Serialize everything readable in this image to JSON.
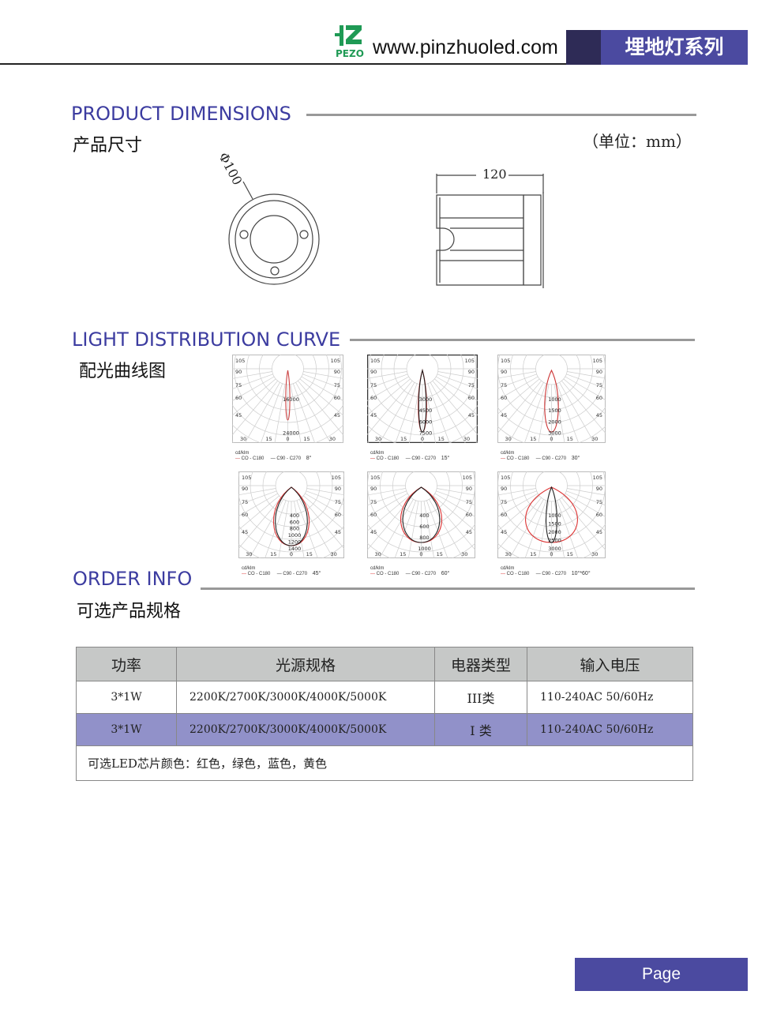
{
  "header": {
    "brand": "PEZO",
    "url": "www.pinzhuoled.com",
    "series": "埋地灯系列",
    "colors": {
      "brand_green": "#1f9a55",
      "accent": "#4b4aa0",
      "dark": "#2e2b56"
    }
  },
  "dimensions": {
    "title_en": "PRODUCT DIMENSIONS",
    "title_cn": "产品尺寸",
    "unit": "（单位：mm）",
    "diameter": "Φ100",
    "length": "120"
  },
  "distribution": {
    "title_en": "LIGHT DISTRIBUTION CURVE",
    "title_cn": "配光曲线图",
    "unit_label": "cd/klm",
    "series": [
      "CO - C180",
      "C90 - C270"
    ],
    "angle_labels_side": [
      "105",
      "90",
      "75",
      "60",
      "45"
    ],
    "angle_labels_bottom": [
      "30",
      "15",
      "0",
      "15",
      "30"
    ],
    "charts": [
      {
        "beam": "8°",
        "values": [
          "16000",
          "24000"
        ]
      },
      {
        "beam": "15°",
        "values": [
          "3000",
          "4500",
          "6000",
          "7500"
        ]
      },
      {
        "beam": "30°",
        "values": [
          "1000",
          "1500",
          "2000",
          "3000"
        ]
      },
      {
        "beam": "45°",
        "values": [
          "400",
          "600",
          "800",
          "1000",
          "1200",
          "1400"
        ]
      },
      {
        "beam": "60°",
        "values": [
          "400",
          "600",
          "800",
          "1000"
        ]
      },
      {
        "beam": "10°*60°",
        "values": [
          "1000",
          "1500",
          "2000",
          "2500",
          "3000"
        ]
      }
    ]
  },
  "order": {
    "title_en": "ORDER INFO",
    "title_cn": "可选产品规格",
    "headers": [
      "功率",
      "光源规格",
      "电器类型",
      "输入电压"
    ],
    "rows": [
      [
        "3*1W",
        "2200K/2700K/3000K/4000K/5000K",
        "III类",
        "110-240AC  50/60Hz"
      ],
      [
        "3*1W",
        "2200K/2700K/3000K/4000K/5000K",
        "I 类",
        "110-240AC  50/60Hz"
      ]
    ],
    "note": "可选LED芯片颜色：红色，绿色，蓝色，黄色"
  },
  "footer": {
    "page": "Page"
  }
}
